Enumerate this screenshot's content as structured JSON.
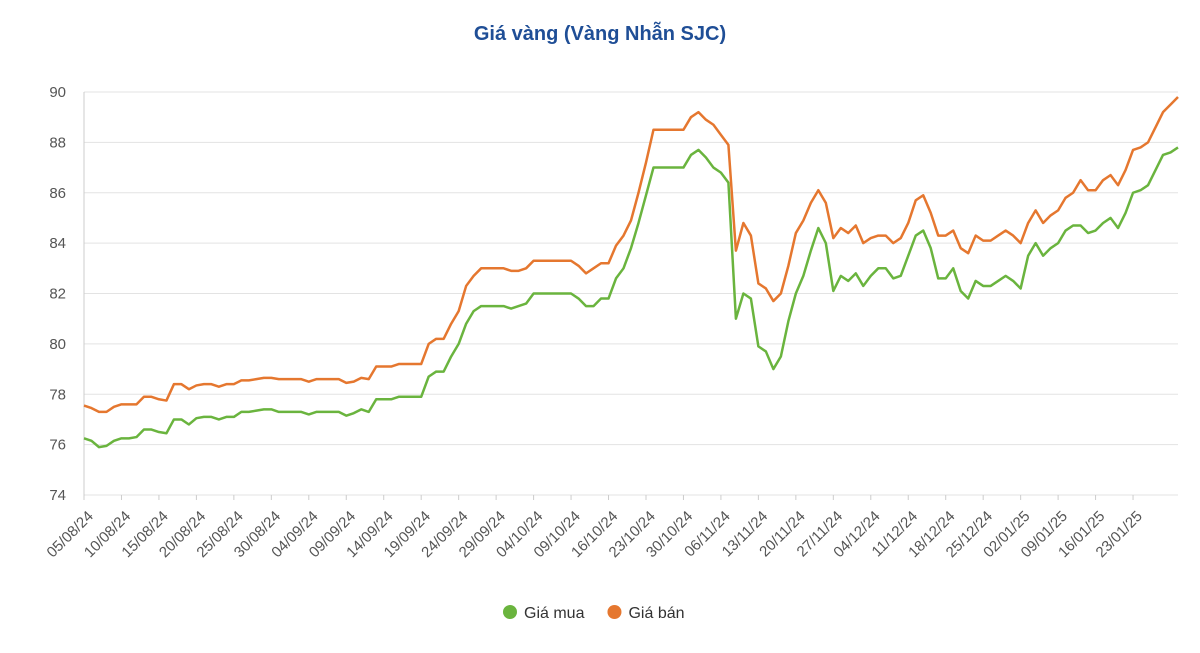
{
  "chart_data": {
    "type": "line",
    "title": "Giá vàng (Vàng Nhẫn SJC)",
    "categories": [
      "05/08/24",
      null,
      null,
      null,
      null,
      "10/08/24",
      null,
      null,
      null,
      null,
      "15/08/24",
      null,
      null,
      null,
      null,
      "20/08/24",
      null,
      null,
      null,
      null,
      "25/08/24",
      null,
      null,
      null,
      null,
      "30/08/24",
      null,
      null,
      null,
      null,
      "04/09/24",
      null,
      null,
      null,
      null,
      "09/09/24",
      null,
      null,
      null,
      null,
      "14/09/24",
      null,
      null,
      null,
      null,
      "19/09/24",
      null,
      null,
      null,
      null,
      "24/09/24",
      null,
      null,
      null,
      null,
      "29/09/24",
      null,
      null,
      null,
      null,
      "04/10/24",
      null,
      null,
      null,
      null,
      "09/10/24",
      null,
      null,
      null,
      null,
      "16/10/24",
      null,
      null,
      null,
      null,
      "23/10/24",
      null,
      null,
      null,
      null,
      "30/10/24",
      null,
      null,
      null,
      null,
      "06/11/24",
      null,
      null,
      null,
      null,
      "13/11/24",
      null,
      null,
      null,
      null,
      "20/11/24",
      null,
      null,
      null,
      null,
      "27/11/24",
      null,
      null,
      null,
      null,
      "04/12/24",
      null,
      null,
      null,
      null,
      "11/12/24",
      null,
      null,
      null,
      null,
      "18/12/24",
      null,
      null,
      null,
      null,
      "25/12/24",
      null,
      null,
      null,
      null,
      "02/01/25",
      null,
      null,
      null,
      null,
      "09/01/25",
      null,
      null,
      null,
      null,
      "16/01/25",
      null,
      null,
      null,
      null,
      "23/01/25",
      null,
      null,
      null,
      null,
      null,
      null
    ],
    "series": [
      {
        "name": "Giá mua",
        "color": "#6ab43e",
        "values": [
          76.25,
          76.15,
          75.9,
          75.95,
          76.15,
          76.25,
          76.25,
          76.3,
          76.6,
          76.6,
          76.5,
          76.45,
          77.0,
          77.0,
          76.8,
          77.05,
          77.1,
          77.1,
          77.0,
          77.1,
          77.1,
          77.3,
          77.3,
          77.35,
          77.4,
          77.4,
          77.3,
          77.3,
          77.3,
          77.3,
          77.2,
          77.3,
          77.3,
          77.3,
          77.3,
          77.15,
          77.25,
          77.4,
          77.3,
          77.8,
          77.8,
          77.8,
          77.9,
          77.9,
          77.9,
          77.9,
          78.7,
          78.9,
          78.9,
          79.5,
          80.0,
          80.8,
          81.3,
          81.5,
          81.5,
          81.5,
          81.5,
          81.4,
          81.5,
          81.6,
          82.0,
          82.0,
          82.0,
          82.0,
          82.0,
          82.0,
          81.8,
          81.5,
          81.5,
          81.8,
          81.8,
          82.6,
          83.0,
          83.8,
          84.8,
          85.9,
          87.0,
          87.0,
          87.0,
          87.0,
          87.0,
          87.5,
          87.7,
          87.4,
          87.0,
          86.8,
          86.4,
          81.0,
          82.0,
          81.8,
          79.9,
          79.7,
          79.0,
          79.5,
          80.9,
          82.0,
          82.7,
          83.7,
          84.6,
          84.0,
          82.1,
          82.7,
          82.5,
          82.8,
          82.3,
          82.7,
          83.0,
          83.0,
          82.6,
          82.7,
          83.5,
          84.3,
          84.5,
          83.8,
          82.6,
          82.6,
          83.0,
          82.1,
          81.8,
          82.5,
          82.3,
          82.3,
          82.5,
          82.7,
          82.5,
          82.2,
          83.5,
          84.0,
          83.5,
          83.8,
          84.0,
          84.5,
          84.7,
          84.7,
          84.4,
          84.5,
          84.8,
          85.0,
          84.6,
          85.2,
          86.0,
          86.1,
          86.3,
          86.9,
          87.5,
          87.6,
          87.8
        ]
      },
      {
        "name": "Giá bán",
        "color": "#e5772f",
        "values": [
          77.55,
          77.45,
          77.3,
          77.3,
          77.5,
          77.6,
          77.6,
          77.6,
          77.9,
          77.9,
          77.8,
          77.75,
          78.4,
          78.4,
          78.2,
          78.35,
          78.4,
          78.4,
          78.3,
          78.4,
          78.4,
          78.55,
          78.55,
          78.6,
          78.65,
          78.65,
          78.6,
          78.6,
          78.6,
          78.6,
          78.5,
          78.6,
          78.6,
          78.6,
          78.6,
          78.45,
          78.5,
          78.65,
          78.6,
          79.1,
          79.1,
          79.1,
          79.2,
          79.2,
          79.2,
          79.2,
          80.0,
          80.2,
          80.2,
          80.8,
          81.3,
          82.3,
          82.7,
          83.0,
          83.0,
          83.0,
          83.0,
          82.9,
          82.9,
          83.0,
          83.3,
          83.3,
          83.3,
          83.3,
          83.3,
          83.3,
          83.1,
          82.8,
          83.0,
          83.2,
          83.2,
          83.9,
          84.3,
          84.9,
          86.0,
          87.2,
          88.5,
          88.5,
          88.5,
          88.5,
          88.5,
          89.0,
          89.2,
          88.9,
          88.7,
          88.3,
          87.9,
          83.7,
          84.8,
          84.3,
          82.4,
          82.2,
          81.7,
          82.0,
          83.1,
          84.4,
          84.9,
          85.6,
          86.1,
          85.6,
          84.2,
          84.6,
          84.4,
          84.7,
          84.0,
          84.2,
          84.3,
          84.3,
          84.0,
          84.2,
          84.8,
          85.7,
          85.9,
          85.2,
          84.3,
          84.3,
          84.5,
          83.8,
          83.6,
          84.3,
          84.1,
          84.1,
          84.3,
          84.5,
          84.3,
          84.0,
          84.8,
          85.3,
          84.8,
          85.1,
          85.3,
          85.8,
          86.0,
          86.5,
          86.1,
          86.1,
          86.5,
          86.7,
          86.3,
          86.9,
          87.7,
          87.8,
          88.0,
          88.6,
          89.2,
          89.5,
          89.8
        ]
      }
    ],
    "ylim": [
      74,
      90
    ],
    "yticks": [
      74,
      76,
      78,
      80,
      82,
      84,
      86,
      88,
      90
    ],
    "grid": true
  }
}
